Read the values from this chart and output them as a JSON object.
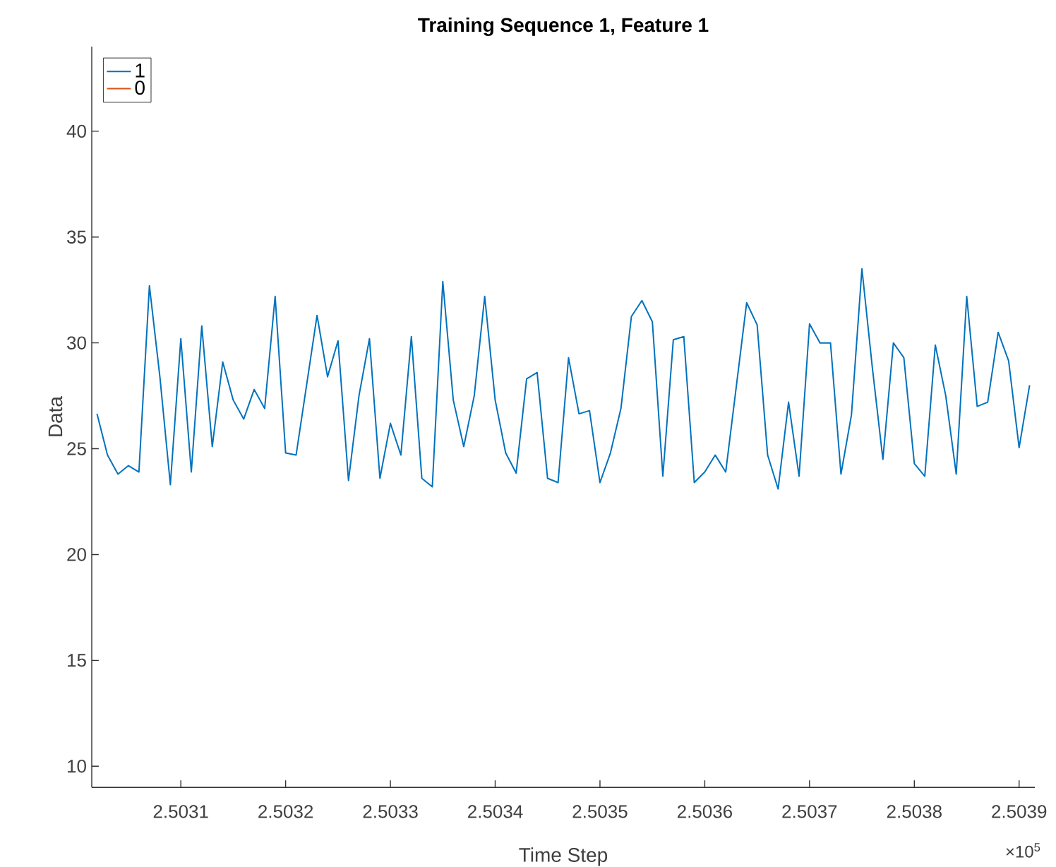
{
  "chart_data": {
    "type": "line",
    "title": "Training Sequence 1, Feature 1",
    "xlabel": "Time Step",
    "ylabel": "Data",
    "x": [
      2.50302,
      2.50303,
      2.50304,
      2.50305,
      2.50306,
      2.50307,
      2.50308,
      2.50309,
      2.5031,
      2.50311,
      2.50312,
      2.50313,
      2.50314,
      2.50315,
      2.50316,
      2.50317,
      2.50318,
      2.50319,
      2.5032,
      2.50321,
      2.50322,
      2.50323,
      2.50324,
      2.50325,
      2.50326,
      2.50327,
      2.50328,
      2.50329,
      2.5033,
      2.50331,
      2.50332,
      2.50333,
      2.50334,
      2.50335,
      2.50336,
      2.50337,
      2.50338,
      2.50339,
      2.5034,
      2.50341,
      2.50342,
      2.50343,
      2.50344,
      2.50345,
      2.50346,
      2.50347,
      2.50348,
      2.50349,
      2.5035,
      2.50351,
      2.50352,
      2.50353,
      2.50354,
      2.50355,
      2.50356,
      2.50357,
      2.50358,
      2.50359,
      2.5036,
      2.50361,
      2.50362,
      2.50363,
      2.50364,
      2.50365,
      2.50366,
      2.50367,
      2.50368,
      2.50369,
      2.5037,
      2.50371,
      2.50372,
      2.50373,
      2.50374,
      2.50375,
      2.50376,
      2.50377,
      2.50378,
      2.50379,
      2.5038,
      2.50381,
      2.50382,
      2.50383,
      2.50384,
      2.50385,
      2.50386,
      2.50387,
      2.50388,
      2.50389,
      2.5039,
      2.50391
    ],
    "series": [
      {
        "name": "1",
        "color": "#0072bd",
        "values": [
          26.65,
          24.7,
          23.8,
          24.2,
          23.9,
          32.7,
          28.4,
          23.3,
          30.2,
          23.9,
          30.8,
          25.1,
          29.1,
          27.3,
          26.4,
          27.8,
          26.9,
          32.2,
          24.8,
          24.7,
          28.0,
          31.3,
          28.4,
          30.1,
          23.5,
          27.5,
          30.2,
          23.6,
          26.2,
          24.7,
          30.3,
          23.6,
          23.2,
          32.9,
          27.3,
          25.1,
          27.5,
          32.2,
          27.3,
          24.8,
          23.85,
          28.3,
          28.6,
          23.6,
          23.4,
          29.3,
          26.65,
          26.8,
          23.4,
          24.8,
          26.9,
          31.25,
          32.0,
          31.0,
          23.7,
          30.15,
          30.3,
          23.4,
          23.9,
          24.7,
          23.9,
          27.9,
          31.9,
          30.85,
          24.7,
          23.1,
          27.2,
          23.7,
          30.9,
          30.0,
          30.0,
          23.8,
          26.6,
          33.5,
          28.8,
          24.5,
          30.0,
          29.3,
          24.3,
          23.7,
          29.9,
          27.5,
          23.8,
          32.2,
          27.0,
          27.2,
          30.5,
          29.15,
          25.05,
          28.0
        ]
      },
      {
        "name": "0",
        "color": "#d95319",
        "values": [
          null,
          null,
          null,
          null,
          null,
          null,
          null,
          null,
          null,
          null,
          null,
          null,
          null,
          null,
          null,
          null,
          null,
          null,
          null,
          null,
          null,
          null,
          null,
          null,
          null,
          null,
          null,
          null,
          null,
          null,
          null,
          null,
          null,
          null,
          null,
          null,
          null,
          null,
          null,
          null,
          null,
          null,
          null,
          null,
          null,
          null,
          null,
          null,
          null,
          null,
          null,
          null,
          null,
          null,
          null,
          null,
          null,
          null,
          null,
          null,
          null,
          null,
          null,
          null,
          null,
          null,
          null,
          null,
          null,
          null,
          null,
          null,
          null,
          null,
          null,
          null,
          null,
          null,
          null,
          null,
          null,
          null,
          null,
          null,
          null,
          null,
          null,
          null,
          null,
          null
        ]
      }
    ],
    "xlim": [
      2.503015,
      2.503915
    ],
    "xticks": [
      2.5031,
      2.5032,
      2.5033,
      2.5034,
      2.5035,
      2.5036,
      2.5037,
      2.5038,
      2.5039
    ],
    "ylim": [
      9,
      44
    ],
    "yticks": [
      10,
      15,
      20,
      25,
      30,
      35,
      40
    ],
    "annotations": [
      "×10$^{5}$"
    ],
    "legend": "top left",
    "line_style": "solid",
    "grid": false
  }
}
